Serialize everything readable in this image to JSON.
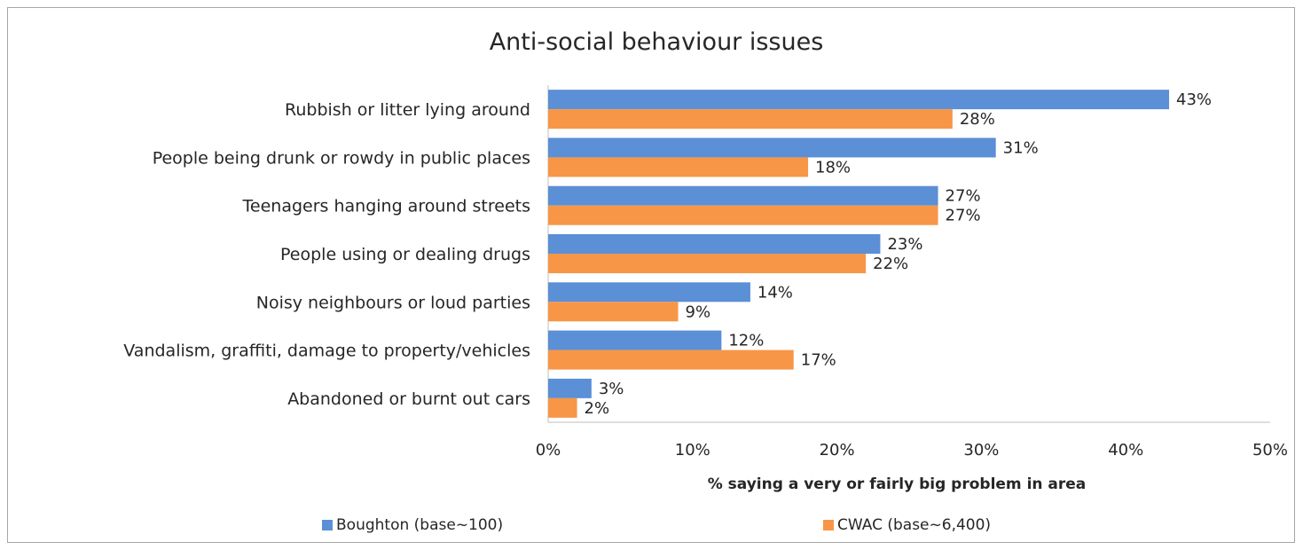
{
  "chart_data": {
    "type": "bar",
    "orientation": "horizontal",
    "title": "Anti-social behaviour issues",
    "xlabel": "% saying a very or fairly big problem in area",
    "ylabel": "",
    "xlim": [
      0,
      50
    ],
    "x_ticks": [
      "0%",
      "10%",
      "20%",
      "30%",
      "40%",
      "50%"
    ],
    "categories": [
      "Rubbish or litter lying around",
      "People being drunk or rowdy in public places",
      "Teenagers hanging around streets",
      "People using or dealing drugs",
      "Noisy neighbours or loud parties",
      "Vandalism, graffiti, damage to property/vehicles",
      "Abandoned or burnt out cars"
    ],
    "series": [
      {
        "name": "Boughton (base~100)",
        "color": "#5b8fd6",
        "values": [
          43,
          31,
          27,
          23,
          14,
          12,
          3
        ],
        "labels": [
          "43%",
          "31%",
          "27%",
          "23%",
          "14%",
          "12%",
          "3%"
        ]
      },
      {
        "name": "CWAC (base~6,400)",
        "color": "#f79646",
        "values": [
          28,
          18,
          27,
          22,
          9,
          17,
          2
        ],
        "labels": [
          "28%",
          "18%",
          "27%",
          "22%",
          "9%",
          "17%",
          "2%"
        ]
      }
    ],
    "grid": false,
    "legend_position": "bottom"
  }
}
